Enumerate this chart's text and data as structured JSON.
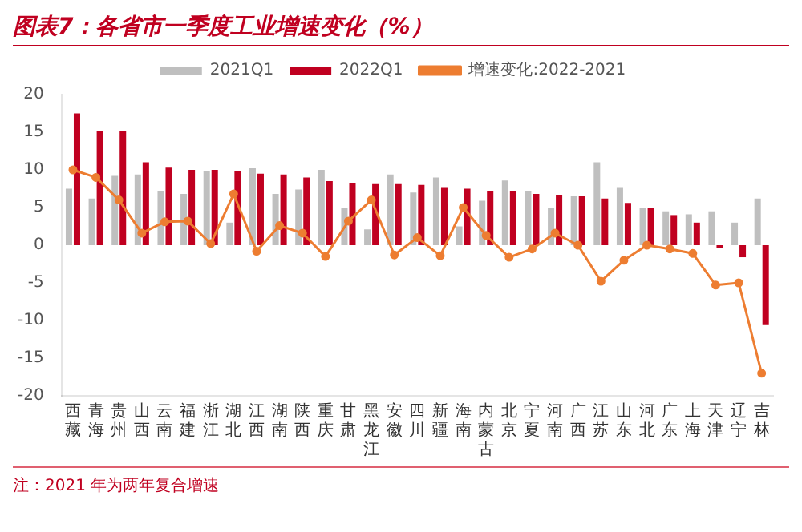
{
  "chart_data": {
    "type": "bar",
    "title": "图表7：各省市一季度工业增速变化（%）",
    "categories": [
      "西藏",
      "青海",
      "贵州",
      "山西",
      "云南",
      "福建",
      "浙江",
      "湖北",
      "江西",
      "湖南",
      "陕西",
      "重庆",
      "甘肃",
      "黑龙江",
      "安徽",
      "四川",
      "新疆",
      "海南",
      "内蒙古",
      "北京",
      "宁夏",
      "河南",
      "广西",
      "江苏",
      "山东",
      "河北",
      "广东",
      "上海",
      "天津",
      "辽宁",
      "吉林"
    ],
    "series": [
      {
        "name": "2021Q1",
        "color": "#bfbfbf",
        "values": [
          7.5,
          6.2,
          9.2,
          9.4,
          7.2,
          6.8,
          9.8,
          3,
          10.2,
          6.8,
          7.4,
          10,
          5,
          2.1,
          9.4,
          7,
          9,
          2.5,
          5.9,
          8.6,
          7.2,
          5,
          6.5,
          11,
          7.6,
          5,
          4.5,
          4.1,
          4.5,
          3,
          6.2
        ]
      },
      {
        "name": "2022Q1",
        "color": "#c00020",
        "values": [
          17.5,
          15.2,
          15.2,
          11,
          10.3,
          10,
          10,
          9.8,
          9.5,
          9.4,
          9,
          8.5,
          8.2,
          8.1,
          8.1,
          8,
          7.6,
          7.5,
          7.2,
          7.2,
          6.8,
          6.6,
          6.5,
          6.2,
          5.6,
          5,
          4,
          3,
          -0.4,
          -1.6,
          -10.6
        ]
      },
      {
        "name": "增速变化:2022-2021",
        "type": "line",
        "color": "#ed7d31",
        "values": [
          10,
          9,
          6,
          1.6,
          3.1,
          3.2,
          0.2,
          6.8,
          -0.8,
          2.6,
          1.6,
          -1.5,
          3.2,
          6,
          -1.3,
          1,
          -1.4,
          5,
          1.3,
          -1.6,
          -0.5,
          1.6,
          0,
          -4.8,
          -2,
          0,
          -0.5,
          -1.1,
          -5.3,
          -5,
          -17
        ]
      }
    ],
    "ylim": [
      -20,
      20
    ],
    "yticks": [
      -20,
      -15,
      -10,
      -5,
      0,
      5,
      10,
      15,
      20
    ],
    "grid": false,
    "legend": "top",
    "marker": "circle",
    "line_style": "solid",
    "annotations": [
      "注：2021 年为两年复合增速"
    ]
  }
}
